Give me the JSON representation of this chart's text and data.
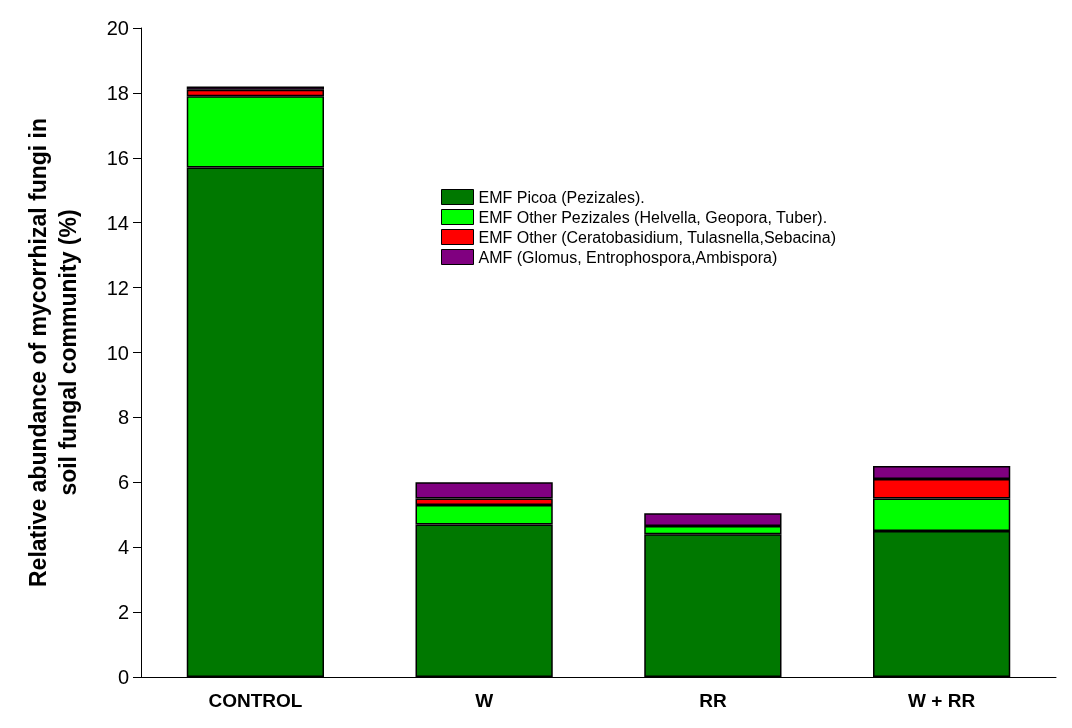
{
  "chart_data": {
    "type": "bar",
    "stacked": true,
    "ylabel": "Relative abundance of mycorrhizal fungi in soil fungal community (%)",
    "categories": [
      "CONTROL",
      "W",
      "RR",
      "W + RR"
    ],
    "series": [
      {
        "name": "EMF Picoa (Pezizales).",
        "color": "#007800",
        "values": [
          15.7,
          4.7,
          4.4,
          4.5
        ]
      },
      {
        "name": "EMF Other Pezizales (Helvella, Geopora, Tuber).",
        "color": "#00ff00",
        "values": [
          2.2,
          0.6,
          0.25,
          1.0
        ]
      },
      {
        "name": "EMF Other (Ceratobasidium, Tulasnella,Sebacina)",
        "color": "#ff0000",
        "values": [
          0.2,
          0.2,
          null,
          0.6
        ]
      },
      {
        "name": "AMF (Glomus, Entrophospora,Ambispora)",
        "color": "#800080",
        "values": [
          0.1,
          0.5,
          0.4,
          0.4
        ]
      }
    ],
    "ylim": [
      0,
      20
    ],
    "yticks": [
      0,
      2,
      4,
      6,
      8,
      10,
      12,
      14,
      16,
      18,
      20
    ],
    "grid": false,
    "legend": "top right"
  }
}
